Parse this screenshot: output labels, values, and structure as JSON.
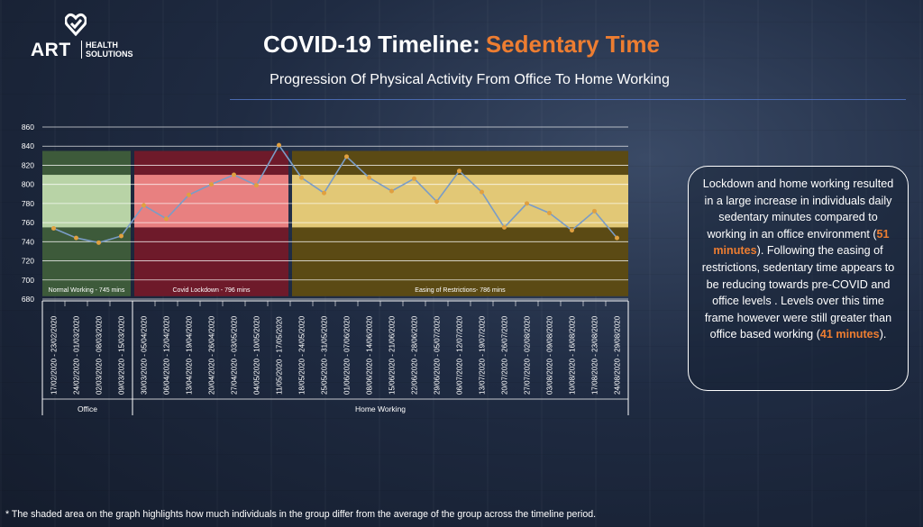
{
  "logo": {
    "brand": "ART",
    "sub_line1": "HEALTH",
    "sub_line2": "SOLUTIONS"
  },
  "header": {
    "title_part1": "COVID-19 Timeline:",
    "title_part2": "Sedentary Time",
    "subtitle": "Progression Of Physical Activity From Office To Home Working"
  },
  "colors": {
    "accent": "#ed7d31",
    "line": "#7a9cc6",
    "marker": "#e0a040"
  },
  "chart_data": {
    "type": "line",
    "title": "",
    "xlabel": "",
    "ylabel": "",
    "ylim": [
      680,
      860
    ],
    "yticks": [
      680,
      700,
      720,
      740,
      760,
      780,
      800,
      820,
      840,
      860
    ],
    "categories": [
      "17/02/2020 - 23/02/2020",
      "24/02/2020 - 01/03/2020",
      "02/03/2020 - 08/03/2020",
      "09/03/2020 - 15/03/2020",
      "30/03/2020 - 05/04/2020",
      "06/04/2020 - 12/04/2020",
      "13/04/2020 - 19/04/2020",
      "20/04/2020 - 26/04/2020",
      "27/04/2020 - 03/05/2020",
      "04/05/2020 - 10/05/2020",
      "11/05/2020 - 17/05/2020",
      "18/05/2020 - 24/05/2020",
      "25/05/2020 - 31/05/2020",
      "01/06/2020 - 07/06/2020",
      "08/06/2020 - 14/06/2020",
      "15/06/2020 - 21/06/2020",
      "22/06/2020 - 28/06/2020",
      "29/06/2020 - 05/07/2020",
      "06/07/2020 - 12/07/2020",
      "13/07/2020 - 19/07/2020",
      "20/07/2020 - 26/07/2020",
      "27/07/2020 - 02/08/2020",
      "03/08/2020 - 09/08/2020",
      "10/08/2020 - 16/08/2020",
      "17/08/2020 - 23/08/2020",
      "24/08/2020 - 29/08/2020"
    ],
    "values": [
      754,
      744,
      739,
      746,
      778,
      764,
      789,
      800,
      810,
      799,
      841,
      807,
      791,
      829,
      807,
      793,
      806,
      782,
      814,
      792,
      755,
      780,
      770,
      752,
      772,
      744
    ],
    "groups": [
      {
        "label": "Office",
        "start": 0,
        "end": 3
      },
      {
        "label": "Home Working",
        "start": 4,
        "end": 25
      }
    ],
    "phases": [
      {
        "label": "Normal Working - 745 mins",
        "start": 0,
        "end": 3,
        "fill": "#3d5a3a",
        "band_fill": "#b8d3a6",
        "band": [
          755,
          810
        ]
      },
      {
        "label": "Covid Lockdown - 796 mins",
        "start": 4,
        "end": 10,
        "fill": "#6e1a2a",
        "band_fill": "#e88080",
        "band": [
          755,
          810
        ]
      },
      {
        "label": "Easing of Restrictions- 786 mins",
        "start": 11,
        "end": 25,
        "fill": "#5b4a14",
        "band_fill": "#e2c876",
        "band": [
          755,
          810
        ]
      }
    ]
  },
  "summary": {
    "part1": "Lockdown and home working resulted in a large increase in individuals daily sedentary minutes compared to working in an office environment (",
    "highlight1": "51 minutes",
    "part2": "). Following the easing of restrictions, sedentary time appears to be reducing towards pre-COVID and office levels . Levels over this time frame however were still greater than office based working (",
    "highlight2": "41 minutes",
    "part3": ")."
  },
  "footnote": "* The shaded area on the graph highlights how much individuals in the group differ from the average of the group across the timeline period."
}
